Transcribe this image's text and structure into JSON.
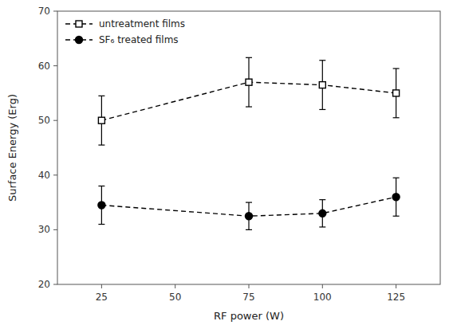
{
  "chart_data": {
    "type": "line",
    "x": [
      25,
      75,
      100,
      125
    ],
    "xlabel": "RF power (W)",
    "ylabel": "Surface Energy (Erg)",
    "xlim": [
      10,
      140
    ],
    "xticks": [
      25,
      50,
      75,
      100,
      125
    ],
    "ylim": [
      20,
      70
    ],
    "yticks": [
      20,
      30,
      40,
      50,
      60,
      70
    ],
    "legend": "upper left",
    "grid": false,
    "series": [
      {
        "name": "untreatment films",
        "color": "#000000",
        "marker": "square",
        "line_style": "dashed",
        "values": [
          50.0,
          57.0,
          56.5,
          55.0
        ],
        "errors": [
          4.5,
          4.5,
          4.5,
          4.5
        ]
      },
      {
        "name": "SF₆ treated films",
        "color": "#000000",
        "marker": "circle",
        "line_style": "dashed",
        "values": [
          34.5,
          32.5,
          33.0,
          36.0
        ],
        "errors": [
          3.5,
          2.5,
          2.5,
          3.5
        ]
      }
    ]
  }
}
